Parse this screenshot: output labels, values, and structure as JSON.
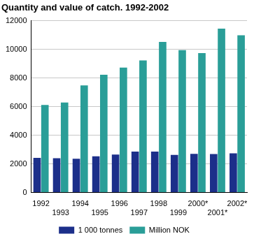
{
  "chart_data": {
    "type": "bar",
    "title": "Quantity and value of catch. 1992-2002",
    "categories": [
      "1992",
      "1993",
      "1994",
      "1995",
      "1996",
      "1997",
      "1998",
      "1999",
      "2000*",
      "2001*",
      "2002*"
    ],
    "series": [
      {
        "name": "1 000 tonnes",
        "color": "#1c2f8a",
        "values": [
          2420,
          2400,
          2360,
          2530,
          2650,
          2860,
          2860,
          2630,
          2700,
          2690,
          2740
        ]
      },
      {
        "name": "Million NOK",
        "color": "#2a9e98",
        "values": [
          6120,
          6280,
          7480,
          8220,
          8730,
          9220,
          10520,
          9950,
          9740,
          11450,
          10980
        ]
      }
    ],
    "ylim": [
      0,
      12000
    ],
    "yticks": [
      0,
      2000,
      4000,
      6000,
      8000,
      10000,
      12000
    ],
    "grid": true,
    "legend": "bottom"
  }
}
